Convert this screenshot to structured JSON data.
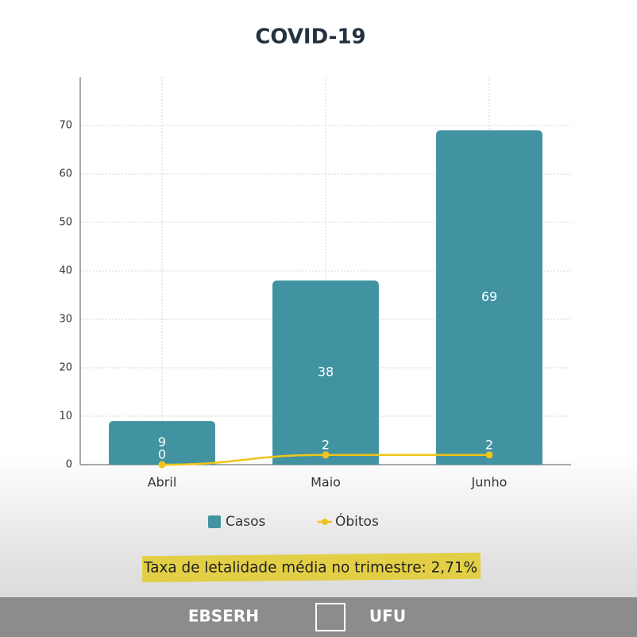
{
  "chart_data": {
    "type": "bar",
    "title": "COVID-19",
    "categories": [
      "Abril",
      "Maio",
      "Junho"
    ],
    "series": [
      {
        "name": "Casos",
        "type": "bar",
        "color": "#4193a1",
        "values": [
          9,
          38,
          69
        ]
      },
      {
        "name": "Óbitos",
        "type": "line",
        "color": "#f0c419",
        "values": [
          0,
          2,
          2
        ]
      }
    ],
    "ylim": [
      0,
      80
    ],
    "yticks": [
      0,
      10,
      20,
      30,
      40,
      50,
      60,
      70
    ],
    "grid": true,
    "legend": "bottom",
    "annotation": "Taxa de letalidade média no trimestre: 2,71%"
  },
  "footer": {
    "logos": [
      "EBSERH",
      "UFU"
    ]
  }
}
